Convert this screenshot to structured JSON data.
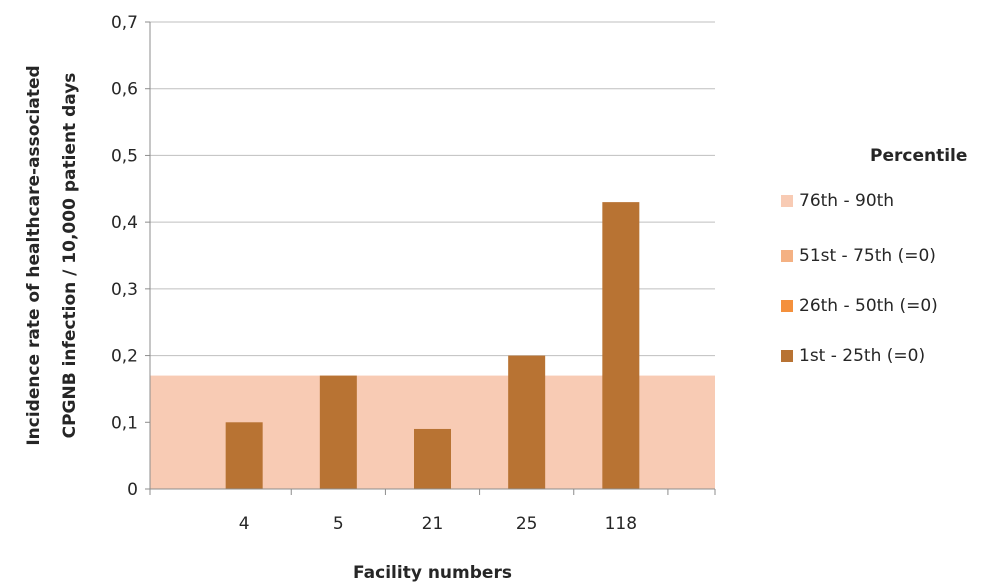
{
  "chart_data": {
    "type": "bar",
    "title": "",
    "xlabel": "Facility numbers",
    "ylabel_lines": [
      "Incidence rate of healthcare-associated",
      "CPGNB infection / 10,000 patient days"
    ],
    "categories": [
      "4",
      "5",
      "21",
      "25",
      "118"
    ],
    "values": [
      0.1,
      0.17,
      0.09,
      0.2,
      0.43
    ],
    "ylim": [
      0,
      0.7
    ],
    "yticks": [
      "0",
      "0,1",
      "0,2",
      "0,3",
      "0,4",
      "0,5",
      "0,6",
      "0,7"
    ],
    "grid": true,
    "bar_color": "#b87333",
    "percentile_bands": [
      {
        "label": "76th - 90th",
        "from": 0,
        "to": 0.17,
        "color": "#f8cbb4"
      },
      {
        "label": "51st - 75th (=0)",
        "from": 0,
        "to": 0,
        "color": "#f4b183"
      },
      {
        "label": "26th - 50th (=0)",
        "from": 0,
        "to": 0,
        "color": "#f4903c"
      },
      {
        "label": "1st - 25th (=0)",
        "from": 0,
        "to": 0,
        "color": "#b87333"
      }
    ],
    "legend": {
      "title": "Percentile",
      "placement": "right"
    }
  }
}
